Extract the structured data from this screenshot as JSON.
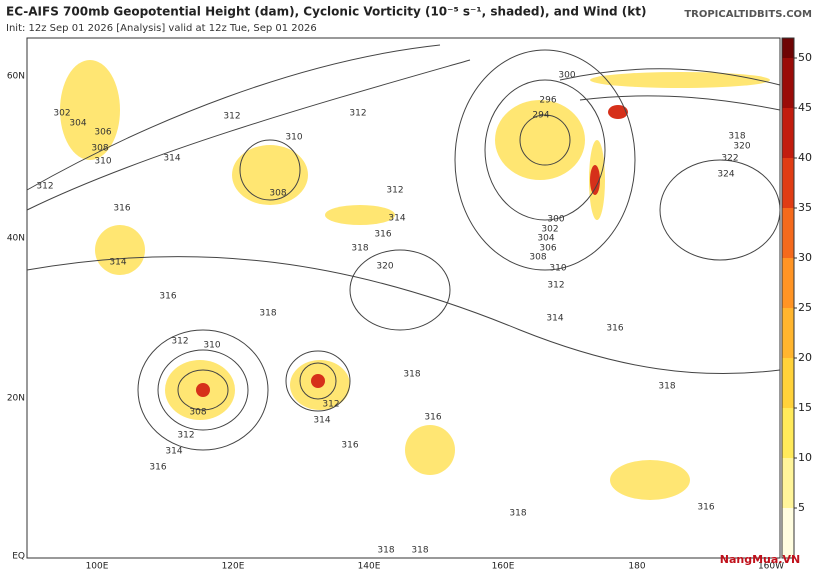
{
  "header": {
    "title": "EC-AIFS 700mb Geopotential Height (dam), Cyclonic Vorticity (10⁻⁵ s⁻¹, shaded), and Wind (kt)",
    "subtitle": "Init: 12z Sep 01 2026   [Analysis]   valid at 12z Tue, Sep 01 2026",
    "site": "TROPICALTIDBITS.COM"
  },
  "map": {
    "lat_labels": [
      "60N",
      "40N",
      "20N",
      "EQ"
    ],
    "lon_labels": [
      "100E",
      "120E",
      "140E",
      "160E",
      "180",
      "160W"
    ],
    "contour_labels": [
      "302",
      "304",
      "306",
      "308",
      "310",
      "312",
      "314",
      "316",
      "312",
      "310",
      "308",
      "312",
      "312",
      "314",
      "316",
      "318",
      "320",
      "314",
      "316",
      "312",
      "310",
      "308",
      "312",
      "314",
      "316",
      "314",
      "312",
      "316",
      "316",
      "318",
      "318",
      "318",
      "318",
      "318",
      "316",
      "316",
      "318",
      "314",
      "312",
      "310",
      "308",
      "306",
      "304",
      "302",
      "300",
      "294",
      "296",
      "300",
      "318",
      "320",
      "322",
      "324"
    ]
  },
  "colorbar": {
    "lim": [
      0,
      52
    ],
    "ticks": [
      5,
      10,
      15,
      20,
      25,
      30,
      35,
      40,
      45,
      50
    ],
    "colors": [
      "#fffde0",
      "#fff59a",
      "#ffea5a",
      "#ffd23a",
      "#ffb52e",
      "#ff9424",
      "#f56a1c",
      "#e03c14",
      "#c21c0e",
      "#9a0c08",
      "#6e0404"
    ]
  },
  "watermark": "NangMua.VN"
}
